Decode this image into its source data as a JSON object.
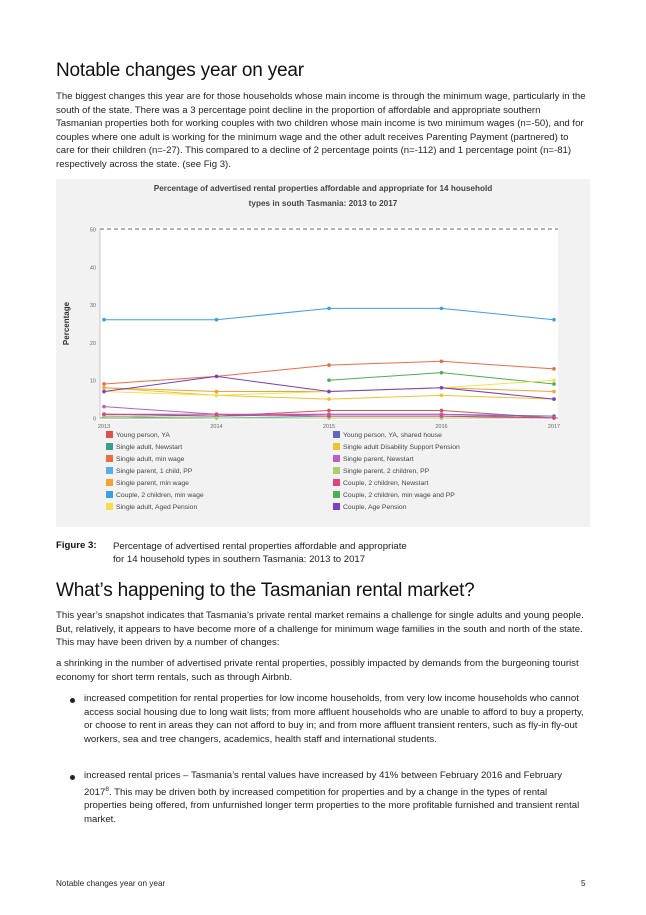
{
  "section1": {
    "heading": "Notable changes year on year",
    "paragraph": "The biggest changes this year are for those households whose main income is through the minimum wage, particularly in the south of the state. There was a 3 percentage point decline in the proportion of affordable and appropriate southern Tasmanian properties both for working couples with two children whose main income is two minimum wages (n=-50), and for couples where one adult is working for the minimum wage and the other adult receives Parenting Payment (partnered) to care for their children (n=-27). This compared to a decline of 2 percentage points (n=-112) and 1 percentage point (n=-81) respectively across the state. (see Fig 3)."
  },
  "figure": {
    "number": "Figure 3:",
    "caption_line1": "Percentage of advertised rental properties affordable and appropriate",
    "caption_line2": "for 14 household types in southern Tasmania: 2013 to 2017"
  },
  "chart_data": {
    "type": "line",
    "title_line1": "Percentage of advertised rental properties affordable and appropriate for 14 household",
    "title_line2": "types in south Tasmania: 2013 to 2017",
    "ylabel": "Percentage",
    "x": [
      "2013",
      "2014",
      "2015",
      "2016",
      "2017"
    ],
    "ylim": [
      0,
      50
    ],
    "yticks": [
      "0",
      "10",
      "20",
      "30",
      "40",
      "50"
    ],
    "reference_line": 50,
    "grid": false,
    "legend_position": "bottom",
    "series": [
      {
        "name": "Young person, YA",
        "color": "#d9534f",
        "values": [
          1,
          0.5,
          2,
          2,
          0
        ]
      },
      {
        "name": "Young person, YA, shared house",
        "color": "#5b6abf",
        "values": [
          1,
          0.5,
          1,
          1,
          0.5
        ]
      },
      {
        "name": "Single adult, Newstart",
        "color": "#3a9e8c",
        "values": [
          0.5,
          0,
          0,
          0,
          0
        ]
      },
      {
        "name": "Single adult Disability Support Pension",
        "color": "#f2c12e",
        "values": [
          8,
          6,
          5,
          6,
          5
        ]
      },
      {
        "name": "Single adult, min wage",
        "color": "#ec6d44",
        "values": [
          9,
          11,
          14,
          15,
          13
        ]
      },
      {
        "name": "Single parent, Newstart",
        "color": "#b85fc2",
        "values": [
          3,
          1,
          1,
          1,
          0
        ]
      },
      {
        "name": "Single parent, 1 child, PP",
        "color": "#5aaee6",
        "values": [
          0.5,
          0,
          0.5,
          0.5,
          0
        ]
      },
      {
        "name": "Single parent, 2 children, PP",
        "color": "#a8d06a",
        "values": [
          0.5,
          0,
          0,
          0,
          0
        ]
      },
      {
        "name": "Single parent, min wage",
        "color": "#f0a236",
        "values": [
          8,
          7,
          7,
          8,
          7
        ]
      },
      {
        "name": "Couple, 2 children, Newstart",
        "color": "#e0457a",
        "values": [
          1,
          1,
          0.5,
          0.5,
          0
        ]
      },
      {
        "name": "Couple, 2 children, min wage",
        "color": "#3d9ee8",
        "values": [
          26,
          26,
          29,
          29,
          26
        ]
      },
      {
        "name": "Couple, 2 children, min wage and PP",
        "color": "#4caf50",
        "values": [
          null,
          null,
          10,
          12,
          9
        ]
      },
      {
        "name": "Single adult, Aged Pension",
        "color": "#f5e04a",
        "values": [
          7,
          6,
          7,
          8,
          10
        ]
      },
      {
        "name": "Couple, Age Pension",
        "color": "#7b3fbf",
        "values": [
          7,
          11,
          7,
          8,
          5
        ]
      }
    ]
  },
  "section2": {
    "heading": "What’s happening to the Tasmanian rental market?",
    "paragraph1": "This year’s snapshot indicates that Tasmania’s private rental market remains a challenge for single adults and young people. But, relatively, it appears to have become more of a challenge for minimum wage families in the south and north of the state. This may have been driven by a number of changes:",
    "paragraph2": "a shrinking in the number of advertised private rental properties, possibly impacted by demands from the burgeoning tourist economy for short term rentals, such as through Airbnb.",
    "bullet1": "increased competition for rental properties for low income households, from very low income households who cannot access social housing due to long wait lists; from more affluent households who are unable to afford to buy a property, or choose to rent in areas they can not afford to buy in; and from more affluent transient renters, such as fly-in fly-out workers, sea and tree changers, academics, health staff and international students.",
    "bullet2_before": "increased rental prices – Tasmania’s rental values have increased by 41% between February 2016 and February 2017",
    "bullet2_sup": "8",
    "bullet2_after": ". This may be driven both by increased competition for properties and by a change in the types of rental properties being offered, from unfurnished longer term properties to the more profitable furnished and transient rental market."
  },
  "footer": {
    "title": "Notable changes year on year",
    "page": "5"
  }
}
